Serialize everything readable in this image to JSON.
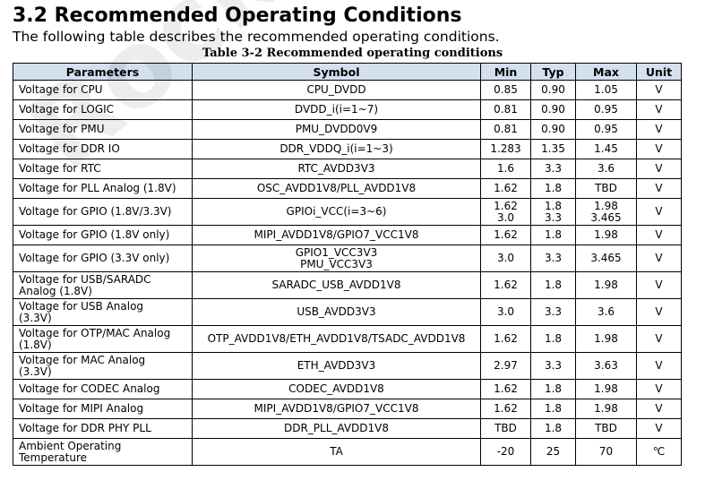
{
  "section": {
    "heading": "3.2 Recommended Operating Conditions",
    "intro": "The following table describes the recommended operating conditions.",
    "caption": "Table 3-2 Recommended operating conditions",
    "watermark": "Rockchip"
  },
  "table": {
    "headers": {
      "param": "Parameters",
      "symbol": "Symbol",
      "min": "Min",
      "typ": "Typ",
      "max": "Max",
      "unit": "Unit"
    },
    "rows": [
      {
        "param": "Voltage for CPU",
        "symbol": "CPU_DVDD",
        "min": "0.85",
        "typ": "0.90",
        "max": "1.05",
        "unit": "V"
      },
      {
        "param": "Voltage for LOGIC",
        "symbol": "DVDD_i(i=1~7)",
        "min": "0.81",
        "typ": "0.90",
        "max": "0.95",
        "unit": "V"
      },
      {
        "param": "Voltage for PMU",
        "symbol": "PMU_DVDD0V9",
        "min": "0.81",
        "typ": "0.90",
        "max": "0.95",
        "unit": "V"
      },
      {
        "param": "Voltage for DDR IO",
        "symbol": "DDR_VDDQ_i(i=1~3)",
        "min": "1.283",
        "typ": "1.35",
        "max": "1.45",
        "unit": "V"
      },
      {
        "param": "Voltage for RTC",
        "symbol": "RTC_AVDD3V3",
        "min": "1.6",
        "typ": "3.3",
        "max": "3.6",
        "unit": "V"
      },
      {
        "param": "Voltage for PLL Analog (1.8V)",
        "symbol": "OSC_AVDD1V8/PLL_AVDD1V8",
        "min": "1.62",
        "typ": "1.8",
        "max": "TBD",
        "unit": "V"
      },
      {
        "param": "Voltage for GPIO (1.8V/3.3V)",
        "symbol": "GPIOi_VCC(i=3~6)",
        "min": "1.62",
        "min2": "3.0",
        "typ": "1.8",
        "typ2": "3.3",
        "max": "1.98",
        "max2": "3.465",
        "unit": "V"
      },
      {
        "param": "Voltage for GPIO (1.8V only)",
        "symbol": "MIPI_AVDD1V8/GPIO7_VCC1V8",
        "min": "1.62",
        "typ": "1.8",
        "max": "1.98",
        "unit": "V"
      },
      {
        "param": "Voltage for GPIO (3.3V only)",
        "symbol": "GPIO1_VCC3V3",
        "symbol2": "PMU_VCC3V3",
        "min": "3.0",
        "typ": "3.3",
        "max": "3.465",
        "unit": "V"
      },
      {
        "param": "Voltage for USB/SARADC",
        "param2": "Analog (1.8V)",
        "symbol": "SARADC_USB_AVDD1V8",
        "min": "1.62",
        "typ": "1.8",
        "max": "1.98",
        "unit": "V"
      },
      {
        "param": "Voltage for USB Analog",
        "param2": "(3.3V)",
        "symbol": "USB_AVDD3V3",
        "min": "3.0",
        "typ": "3.3",
        "max": "3.6",
        "unit": "V"
      },
      {
        "param": "Voltage for OTP/MAC Analog",
        "param2": "(1.8V)",
        "symbol": "OTP_AVDD1V8/ETH_AVDD1V8/TSADC_AVDD1V8",
        "min": "1.62",
        "typ": "1.8",
        "max": "1.98",
        "unit": "V"
      },
      {
        "param": "Voltage for MAC Analog",
        "param2": "(3.3V)",
        "symbol": "ETH_AVDD3V3",
        "min": "2.97",
        "typ": "3.3",
        "max": "3.63",
        "unit": "V"
      },
      {
        "param": "Voltage for CODEC Analog",
        "symbol": "CODEC_AVDD1V8",
        "min": "1.62",
        "typ": "1.8",
        "max": "1.98",
        "unit": "V"
      },
      {
        "param": "Voltage for MIPI Analog",
        "symbol": "MIPI_AVDD1V8/GPIO7_VCC1V8",
        "min": "1.62",
        "typ": "1.8",
        "max": "1.98",
        "unit": "V"
      },
      {
        "param": "Voltage for DDR PHY PLL",
        "symbol": "DDR_PLL_AVDD1V8",
        "min": "TBD",
        "typ": "1.8",
        "max": "TBD",
        "unit": "V"
      },
      {
        "param": "Ambient Operating",
        "param2": "Temperature",
        "symbol": "TA",
        "min": "-20",
        "typ": "25",
        "max": "70",
        "unit": "℃"
      }
    ]
  },
  "colors": {
    "header_bg": "#d4e0ee",
    "border": "#000000"
  }
}
